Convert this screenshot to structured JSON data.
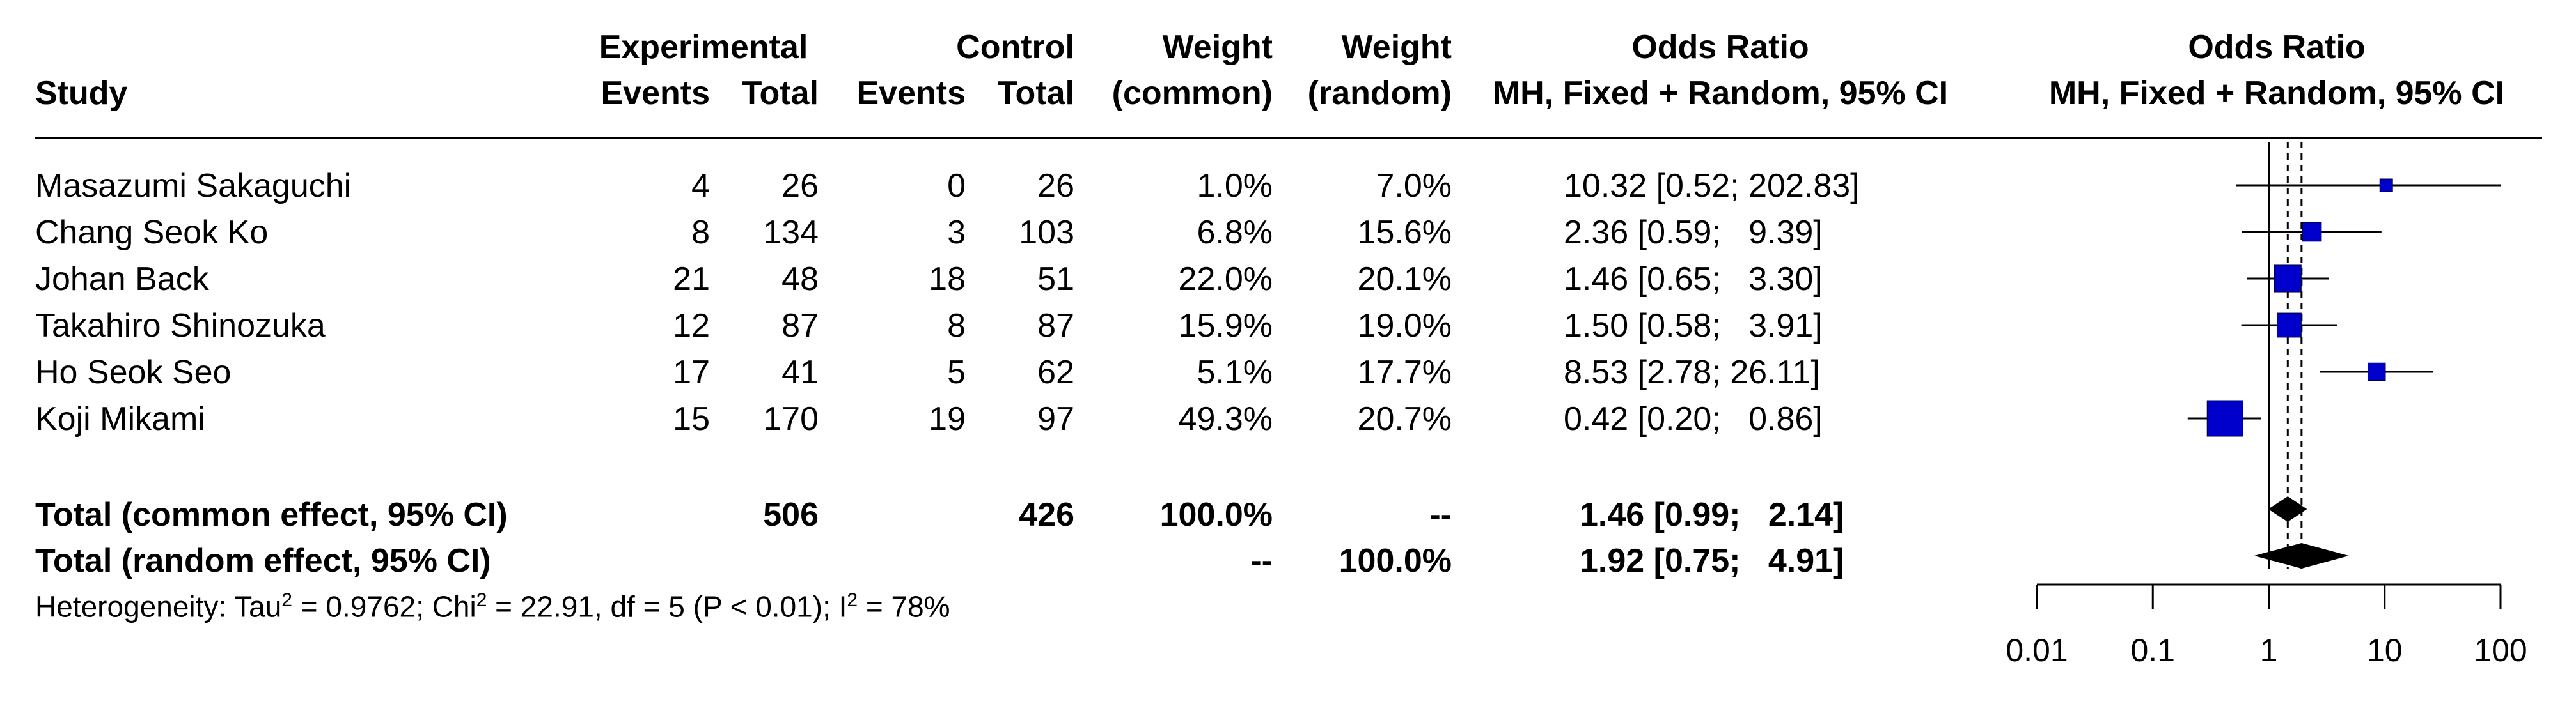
{
  "headers": {
    "study": "Study",
    "experimental": "Experimental",
    "control": "Control",
    "events": "Events",
    "total": "Total",
    "weight": "Weight",
    "common": "(common)",
    "random": "(random)",
    "odds_ratio": "Odds Ratio",
    "method": "MH, Fixed + Random, 95% CI",
    "plot_title": "Odds Ratio",
    "plot_method": "MH, Fixed + Random, 95% CI"
  },
  "studies": [
    {
      "name": "Masazumi Sakaguchi",
      "e_events": "4",
      "e_total": "26",
      "c_events": "0",
      "c_total": "26",
      "w_common": "1.0%",
      "w_random": "7.0%",
      "or_text": "10.32 [0.52; 202.83]"
    },
    {
      "name": "Chang Seok Ko",
      "e_events": "8",
      "e_total": "134",
      "c_events": "3",
      "c_total": "103",
      "w_common": "6.8%",
      "w_random": "15.6%",
      "or_text": "2.36 [0.59;   9.39]"
    },
    {
      "name": "Johan Back",
      "e_events": "21",
      "e_total": "48",
      "c_events": "18",
      "c_total": "51",
      "w_common": "22.0%",
      "w_random": "20.1%",
      "or_text": "1.46 [0.65;   3.30]"
    },
    {
      "name": "Takahiro Shinozuka",
      "e_events": "12",
      "e_total": "87",
      "c_events": "8",
      "c_total": "87",
      "w_common": "15.9%",
      "w_random": "19.0%",
      "or_text": "1.50 [0.58;   3.91]"
    },
    {
      "name": "Ho Seok Seo",
      "e_events": "17",
      "e_total": "41",
      "c_events": "5",
      "c_total": "62",
      "w_common": "5.1%",
      "w_random": "17.7%",
      "or_text": "8.53 [2.78; 26.11]"
    },
    {
      "name": "Koji Mikami",
      "e_events": "15",
      "e_total": "170",
      "c_events": "19",
      "c_total": "97",
      "w_common": "49.3%",
      "w_random": "20.7%",
      "or_text": "0.42 [0.20;   0.86]"
    }
  ],
  "totals": {
    "common": {
      "label": "Total (common effect, 95% CI)",
      "e_total": "506",
      "c_total": "426",
      "w_common": "100.0%",
      "w_random": "--",
      "or_text": "1.46 [0.99;   2.14]"
    },
    "random": {
      "label": "Total (random effect, 95% CI)",
      "w_common": "--",
      "w_random": "100.0%",
      "or_text": "1.92 [0.75;   4.91]"
    }
  },
  "heterogeneity": {
    "p1": "Heterogeneity: Tau",
    "p2": " = 0.9762; Chi",
    "p3": " = 22.91, df = 5 (P < 0.01); I",
    "p4": " = 78%",
    "sup": "2"
  },
  "chart_data": {
    "type": "forest",
    "scale": "log",
    "xlim": [
      0.01,
      100
    ],
    "ticks": [
      0.01,
      0.1,
      1,
      10,
      100
    ],
    "tick_labels": [
      "0.01",
      "0.1",
      "1",
      "10",
      "100"
    ],
    "reference_line": 1,
    "summary_lines": [
      1.46,
      1.92
    ],
    "studies": [
      {
        "name": "Masazumi Sakaguchi",
        "or": 10.32,
        "lower": 0.52,
        "upper": 202.83,
        "weight": 1.0
      },
      {
        "name": "Chang Seok Ko",
        "or": 2.36,
        "lower": 0.59,
        "upper": 9.39,
        "weight": 6.8
      },
      {
        "name": "Johan Back",
        "or": 1.46,
        "lower": 0.65,
        "upper": 3.3,
        "weight": 22.0
      },
      {
        "name": "Takahiro Shinozuka",
        "or": 1.5,
        "lower": 0.58,
        "upper": 3.91,
        "weight": 15.9
      },
      {
        "name": "Ho Seok Seo",
        "or": 8.53,
        "lower": 2.78,
        "upper": 26.11,
        "weight": 5.1
      },
      {
        "name": "Koji Mikami",
        "or": 0.42,
        "lower": 0.2,
        "upper": 0.86,
        "weight": 49.3
      }
    ],
    "pooled": [
      {
        "name": "common",
        "or": 1.46,
        "lower": 0.99,
        "upper": 2.14
      },
      {
        "name": "random",
        "or": 1.92,
        "lower": 0.75,
        "upper": 4.91
      }
    ],
    "colors": {
      "box": "#0000cc",
      "diamond": "#000000",
      "line": "#000000"
    }
  }
}
